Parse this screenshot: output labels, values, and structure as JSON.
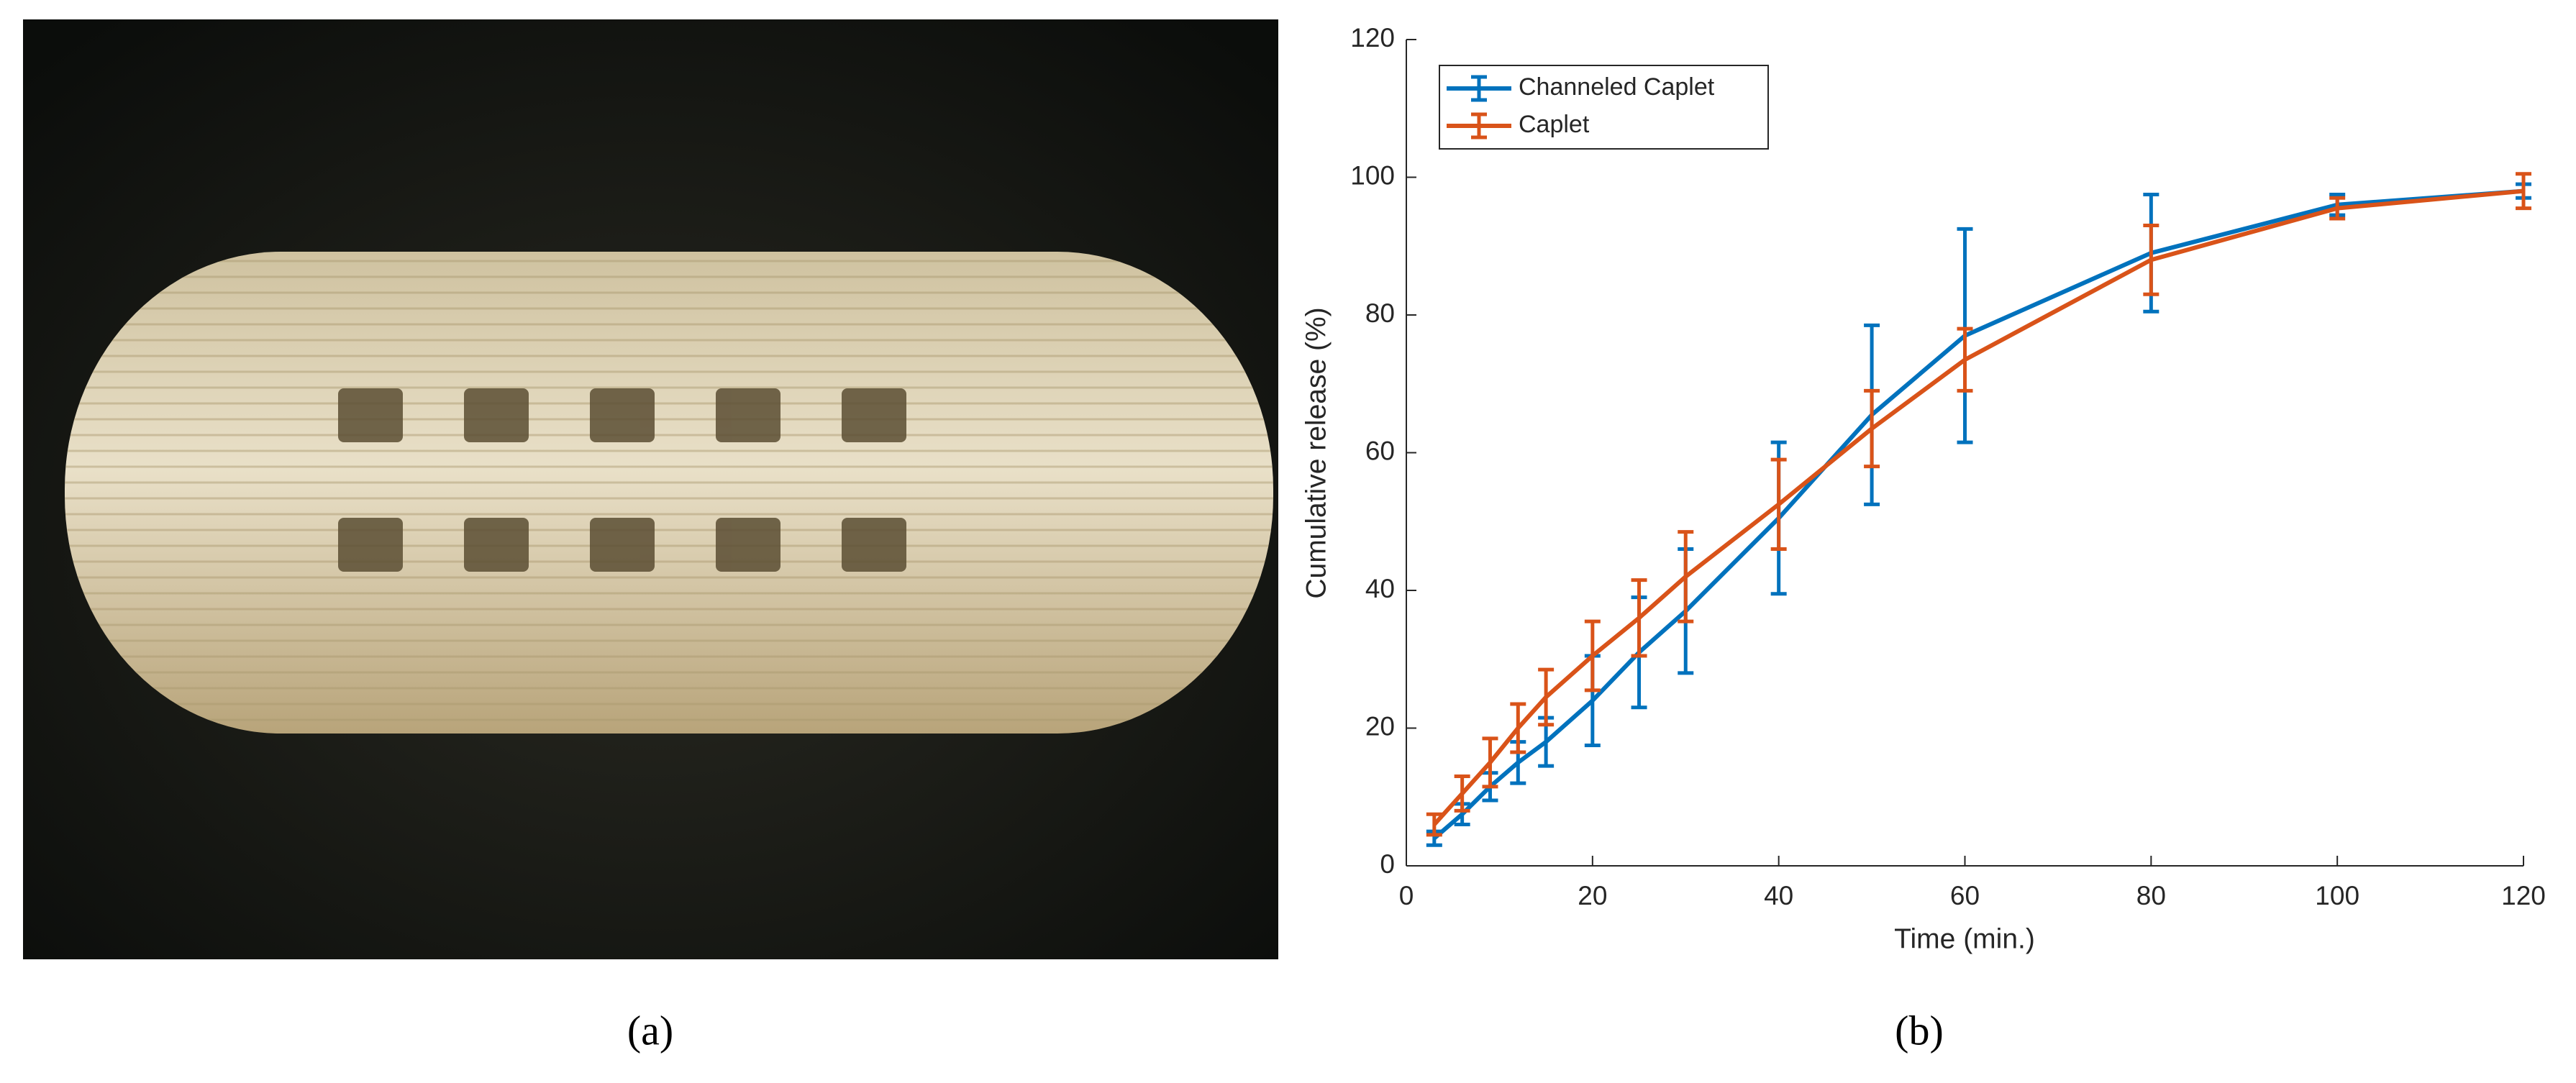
{
  "captions": [
    "(a)",
    "(b)"
  ],
  "chart_data": {
    "type": "line",
    "x_label": "Time (min.)",
    "y_label": "Cumulative release (%)",
    "x": [
      3,
      6,
      9,
      12,
      15,
      20,
      25,
      30,
      40,
      50,
      60,
      80,
      100,
      120
    ],
    "series": [
      {
        "name": "Channeled Caplet",
        "color": "#0072BD",
        "values": [
          4,
          7.5,
          11.5,
          15,
          18,
          24,
          31,
          37,
          50.5,
          65.5,
          77,
          89,
          96,
          98
        ],
        "errors": [
          1,
          1.5,
          2,
          3,
          3.5,
          6.5,
          8,
          9,
          11,
          13,
          15.5,
          8.5,
          1.5,
          1
        ]
      },
      {
        "name": "Caplet",
        "color": "#D95319",
        "values": [
          6,
          10.5,
          15,
          20,
          24.5,
          30.5,
          36,
          42,
          52.5,
          63.5,
          73.5,
          88,
          95.5,
          98
        ],
        "errors": [
          1.5,
          2.5,
          3.5,
          3.5,
          4,
          5,
          5.5,
          6.5,
          6.5,
          5.5,
          4.5,
          5,
          1.5,
          2.5
        ]
      }
    ],
    "xlim": [
      0,
      120
    ],
    "ylim": [
      0,
      120
    ],
    "xticks": [
      0,
      20,
      40,
      60,
      80,
      100,
      120
    ],
    "yticks": [
      0,
      20,
      40,
      60,
      80,
      100,
      120
    ],
    "legend": "top-left",
    "grid": false
  }
}
